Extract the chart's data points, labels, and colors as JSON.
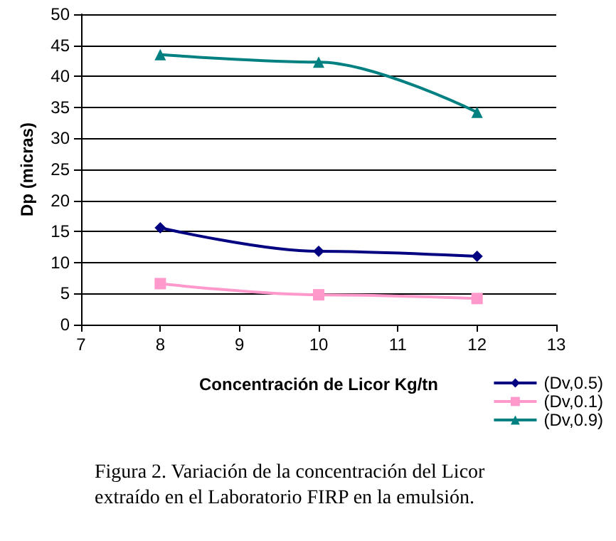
{
  "chart_data": {
    "type": "line",
    "xlabel": "Concentración de Licor Kg/tn",
    "ylabel": "Dp (micras)",
    "x": [
      8,
      10,
      12
    ],
    "series": [
      {
        "name": "(Dv,0.5)",
        "color": "#000080",
        "marker": "diamond",
        "values": [
          15.6,
          11.8,
          11.0
        ]
      },
      {
        "name": "(Dv,0.1)",
        "color": "#ff99cc",
        "marker": "square",
        "values": [
          6.6,
          4.8,
          4.2
        ]
      },
      {
        "name": "(Dv,0.9)",
        "color": "#008080",
        "marker": "triangle",
        "values": [
          43.5,
          42.3,
          34.2
        ]
      }
    ],
    "xlim": [
      7,
      13
    ],
    "xticks": [
      7,
      8,
      9,
      10,
      11,
      12,
      13
    ],
    "ylim": [
      0,
      50
    ],
    "yticks": [
      0,
      5,
      10,
      15,
      20,
      25,
      30,
      35,
      40,
      45,
      50
    ],
    "grid": "y",
    "legend": "bottom right",
    "annotations": [
      "Figura 2. Variación de la concentración del Licor extraído en el Laboratorio FIRP en la emulsión."
    ]
  }
}
